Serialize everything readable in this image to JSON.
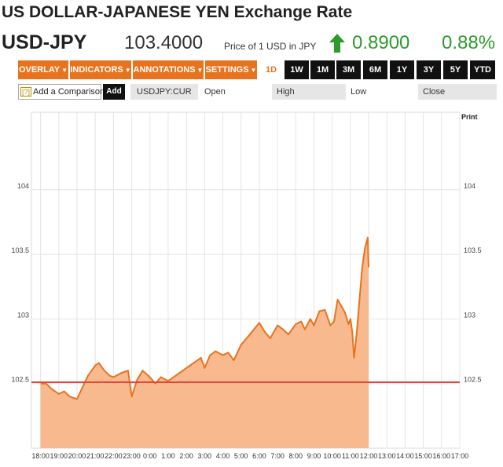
{
  "header": {
    "title": "US DOLLAR-JAPANESE YEN Exchange Rate",
    "symbol": "USD-JPY",
    "price": "103.4000",
    "price_note": "Price of 1 USD in JPY",
    "change": "0.8900",
    "change_pct": "0.88%",
    "change_direction_icon": "arrow-up-icon",
    "up_color": "#2c9b2c"
  },
  "toolbar": {
    "menus": [
      {
        "label": "OVERLAY"
      },
      {
        "label": "INDICATORS"
      },
      {
        "label": "ANNOTATIONS"
      },
      {
        "label": "SETTINGS"
      }
    ],
    "active_range": "1D",
    "ranges": [
      "1W",
      "1M",
      "3M",
      "6M",
      "1Y",
      "3Y",
      "5Y",
      "YTD"
    ],
    "accent": "#e8731e"
  },
  "compare": {
    "help_glyph": "[?]",
    "placeholder": "Add a Comparison",
    "add_label": "Add",
    "symbol": "USDJPY:CUR",
    "open_label": "Open",
    "high_label": "High",
    "low_label": "Low",
    "close_label": "Close"
  },
  "chart_data": {
    "type": "area",
    "print_label": "Print",
    "x_ticks": [
      "18:00",
      "19:00",
      "20:00",
      "21:00",
      "22:00",
      "23:00",
      "0:00",
      "1:00",
      "2:00",
      "3:00",
      "4:00",
      "5:00",
      "6:00",
      "7:00",
      "8:00",
      "9:00",
      "10:00",
      "11:00",
      "12:00",
      "13:00",
      "14:00",
      "15:00",
      "16:00",
      "17:00"
    ],
    "y_ticks": [
      "102.5",
      "103",
      "103.5",
      "104"
    ],
    "ylim": [
      102.0,
      104.6
    ],
    "grid": true,
    "previous_close": 102.51,
    "previous_close_color": "#e0473a",
    "area_color": "#f9b98f",
    "line_color": "#e8731e",
    "x": [
      18.0,
      18.3,
      18.6,
      19.0,
      19.3,
      19.6,
      20.0,
      20.3,
      20.6,
      21.0,
      21.2,
      21.5,
      21.8,
      22.0,
      22.4,
      22.8,
      23.0,
      23.3,
      23.6,
      24.0,
      24.3,
      24.6,
      25.0,
      25.4,
      25.8,
      26.0,
      26.4,
      26.8,
      27.0,
      27.3,
      27.6,
      28.0,
      28.3,
      28.6,
      29.0,
      29.3,
      29.6,
      30.0,
      30.3,
      30.6,
      31.0,
      31.3,
      31.6,
      32.0,
      32.3,
      32.5,
      32.8,
      33.0,
      33.3,
      33.6,
      33.9,
      34.1,
      34.3,
      34.5,
      34.7,
      34.9,
      35.0,
      35.1,
      35.2,
      35.35,
      35.5,
      35.65,
      35.8,
      35.95,
      36.0
    ],
    "values": [
      102.5,
      102.5,
      102.46,
      102.42,
      102.44,
      102.4,
      102.38,
      102.47,
      102.56,
      102.64,
      102.66,
      102.6,
      102.56,
      102.55,
      102.58,
      102.6,
      102.4,
      102.53,
      102.6,
      102.55,
      102.5,
      102.55,
      102.52,
      102.56,
      102.6,
      102.62,
      102.66,
      102.7,
      102.62,
      102.72,
      102.75,
      102.72,
      102.74,
      102.68,
      102.8,
      102.85,
      102.9,
      102.97,
      102.9,
      102.85,
      102.95,
      102.92,
      102.88,
      102.96,
      102.98,
      102.92,
      103.0,
      102.95,
      103.06,
      103.07,
      102.95,
      102.98,
      103.15,
      103.1,
      103.05,
      102.96,
      103.0,
      102.9,
      102.7,
      102.9,
      103.15,
      103.4,
      103.55,
      103.63,
      103.4
    ]
  }
}
